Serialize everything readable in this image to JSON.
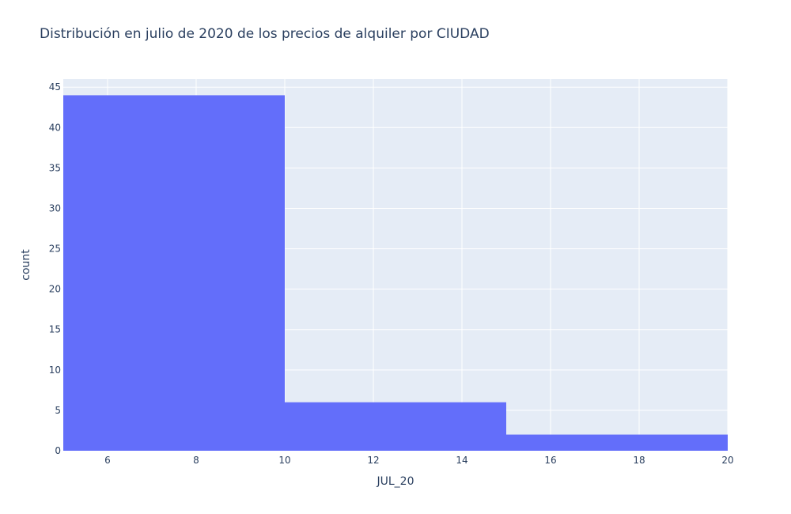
{
  "chart_data": {
    "type": "bar",
    "title": "Distribución en julio de 2020 de los precios de alquiler por CIUDAD",
    "xlabel": "JUL_20",
    "ylabel": "count",
    "xlim": [
      5,
      20
    ],
    "ylim": [
      0,
      46
    ],
    "x_ticks": [
      6,
      8,
      10,
      12,
      14,
      16,
      18,
      20
    ],
    "y_ticks": [
      0,
      5,
      10,
      15,
      20,
      25,
      30,
      35,
      40,
      45
    ],
    "bins": [
      {
        "start": 5,
        "end": 10,
        "count": 44
      },
      {
        "start": 10,
        "end": 15,
        "count": 6
      },
      {
        "start": 15,
        "end": 20,
        "count": 2
      }
    ],
    "grid": true,
    "colors": {
      "bar": "#636efa",
      "plot_background": "#e5ecf6",
      "grid": "#ffffff",
      "text": "#2a3f5f"
    }
  }
}
